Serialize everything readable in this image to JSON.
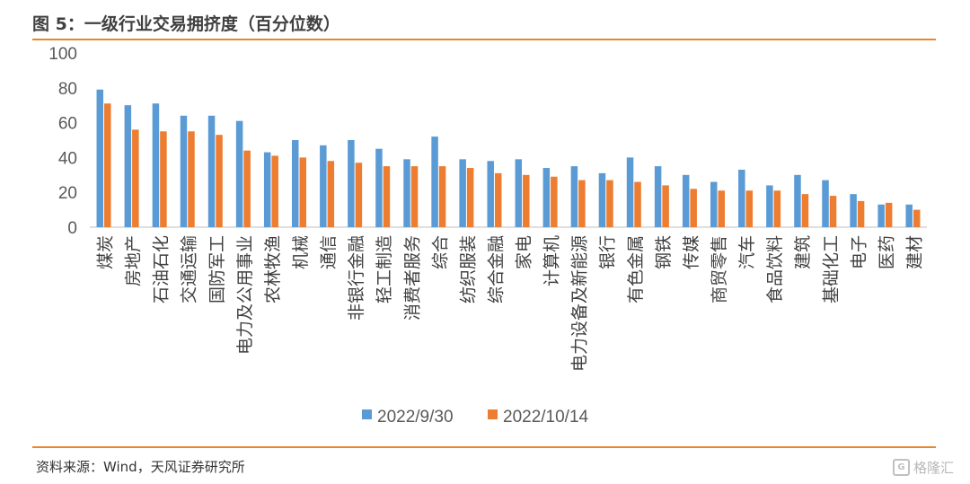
{
  "figure_title": "图 5：一级行业交易拥挤度（百分位数）",
  "source_note": "资料来源：Wind，天风证券研究所",
  "watermark": {
    "text": "格隆汇",
    "icon": "g-logo-icon"
  },
  "colors": {
    "series1": "#5b9bd5",
    "series2": "#ed7d31",
    "rule": "#e8862d",
    "axis": "#bfbfbf"
  },
  "chart_data": {
    "type": "bar",
    "title": "",
    "xlabel": "",
    "ylabel": "",
    "ylim": [
      0,
      100
    ],
    "yticks": [
      0,
      20,
      40,
      60,
      80,
      100
    ],
    "grid": false,
    "legend_position": "bottom",
    "categories": [
      "煤炭",
      "房地产",
      "石油石化",
      "交通运输",
      "国防军工",
      "电力及公用事业",
      "农林牧渔",
      "机械",
      "通信",
      "非银行金融",
      "轻工制造",
      "消费者服务",
      "综合",
      "纺织服装",
      "综合金融",
      "家电",
      "计算机",
      "电力设备及新能源",
      "银行",
      "有色金属",
      "钢铁",
      "传媒",
      "商贸零售",
      "汽车",
      "食品饮料",
      "建筑",
      "基础化工",
      "电子",
      "医药",
      "建材"
    ],
    "series": [
      {
        "name": "2022/9/30",
        "values": [
          79,
          70,
          71,
          64,
          64,
          61,
          43,
          50,
          47,
          50,
          45,
          39,
          52,
          39,
          38,
          39,
          34,
          35,
          31,
          40,
          35,
          30,
          26,
          33,
          24,
          30,
          27,
          19,
          13,
          13
        ]
      },
      {
        "name": "2022/10/14",
        "values": [
          71,
          56,
          55,
          55,
          53,
          44,
          41,
          40,
          38,
          37,
          35,
          35,
          35,
          34,
          31,
          30,
          29,
          27,
          27,
          26,
          24,
          22,
          21,
          21,
          21,
          19,
          18,
          15,
          14,
          10
        ]
      }
    ]
  }
}
